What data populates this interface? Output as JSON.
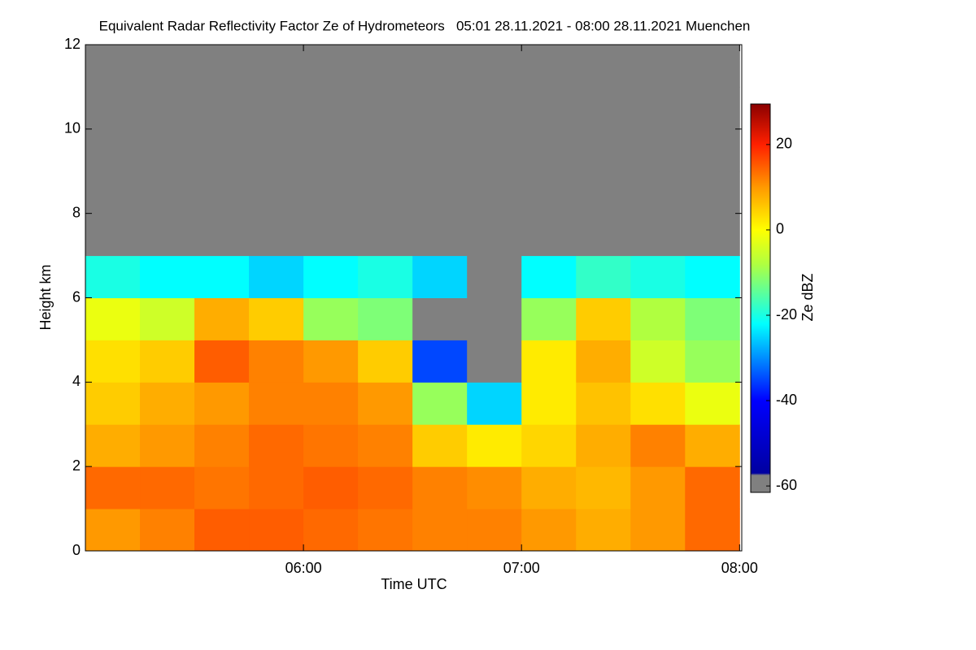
{
  "chart_data": {
    "type": "heatmap",
    "title": "Equivalent Radar Reflectivity Factor Ze of Hydrometeors   05:01 28.11.2021 - 08:00 28.11.2021 Muenchen",
    "x_label": "Time UTC",
    "y_label": "Height km",
    "colorbar_label": "Ze dBZ",
    "x": [
      5.125,
      5.375,
      5.625,
      5.875,
      6.125,
      6.375,
      6.625,
      6.875,
      7.125,
      7.375,
      7.625,
      7.875
    ],
    "y": [
      0.5,
      1.5,
      2.5,
      3.5,
      4.5,
      5.5,
      6.5,
      7.5,
      8.5,
      9.5,
      10.5,
      11.5
    ],
    "z": [
      [
        10,
        12,
        15,
        15,
        14,
        13,
        12,
        12,
        10,
        8,
        10,
        14
      ],
      [
        14,
        14,
        13,
        14,
        15,
        14,
        12,
        11,
        8,
        7,
        10,
        14
      ],
      [
        8,
        10,
        12,
        14,
        13,
        12,
        5,
        2,
        4,
        8,
        12,
        8
      ],
      [
        5,
        8,
        10,
        12,
        12,
        10,
        -10,
        -25,
        2,
        6,
        3,
        -2
      ],
      [
        3,
        5,
        15,
        12,
        10,
        5,
        -35,
        null,
        2,
        8,
        -5,
        -10
      ],
      [
        -2,
        -5,
        8,
        5,
        -10,
        -12,
        null,
        null,
        -10,
        5,
        -8,
        -12
      ],
      [
        -20,
        -22,
        -22,
        -25,
        -22,
        -20,
        -25,
        null,
        -22,
        -18,
        -20,
        -22
      ],
      [
        null,
        null,
        null,
        null,
        null,
        null,
        null,
        null,
        null,
        null,
        null,
        null
      ],
      [
        null,
        null,
        null,
        null,
        null,
        null,
        null,
        null,
        null,
        null,
        null,
        null
      ],
      [
        null,
        null,
        null,
        null,
        null,
        null,
        null,
        null,
        null,
        null,
        null,
        null
      ],
      [
        null,
        null,
        null,
        null,
        null,
        null,
        null,
        null,
        null,
        null,
        null,
        null
      ],
      [
        null,
        null,
        null,
        null,
        null,
        null,
        null,
        null,
        null,
        null,
        null,
        null
      ]
    ],
    "xlim": [
      5.0,
      8.01
    ],
    "xticks": [
      {
        "value": 6,
        "label": "06:00"
      },
      {
        "value": 7,
        "label": "07:00"
      },
      {
        "value": 8,
        "label": "08:00"
      }
    ],
    "ylim": [
      0,
      12
    ],
    "yticks": [
      0,
      2,
      4,
      6,
      8,
      10,
      12
    ],
    "clim": [
      -61.5,
      29.5
    ],
    "cticks": [
      -60,
      -40,
      -20,
      0,
      20
    ],
    "colormap": [
      {
        "value": -61.5,
        "color": "#808080"
      },
      {
        "value": -57.5,
        "color": "#808080"
      },
      {
        "value": -57,
        "color": "#0000a0"
      },
      {
        "value": -40,
        "color": "#0000ff"
      },
      {
        "value": -22,
        "color": "#00ffff"
      },
      {
        "value": -8,
        "color": "#b0ff40"
      },
      {
        "value": 0,
        "color": "#ffff00"
      },
      {
        "value": 10,
        "color": "#ff9900"
      },
      {
        "value": 20,
        "color": "#ff2000"
      },
      {
        "value": 29.5,
        "color": "#8b0000"
      }
    ],
    "missing_color": "#808080"
  }
}
